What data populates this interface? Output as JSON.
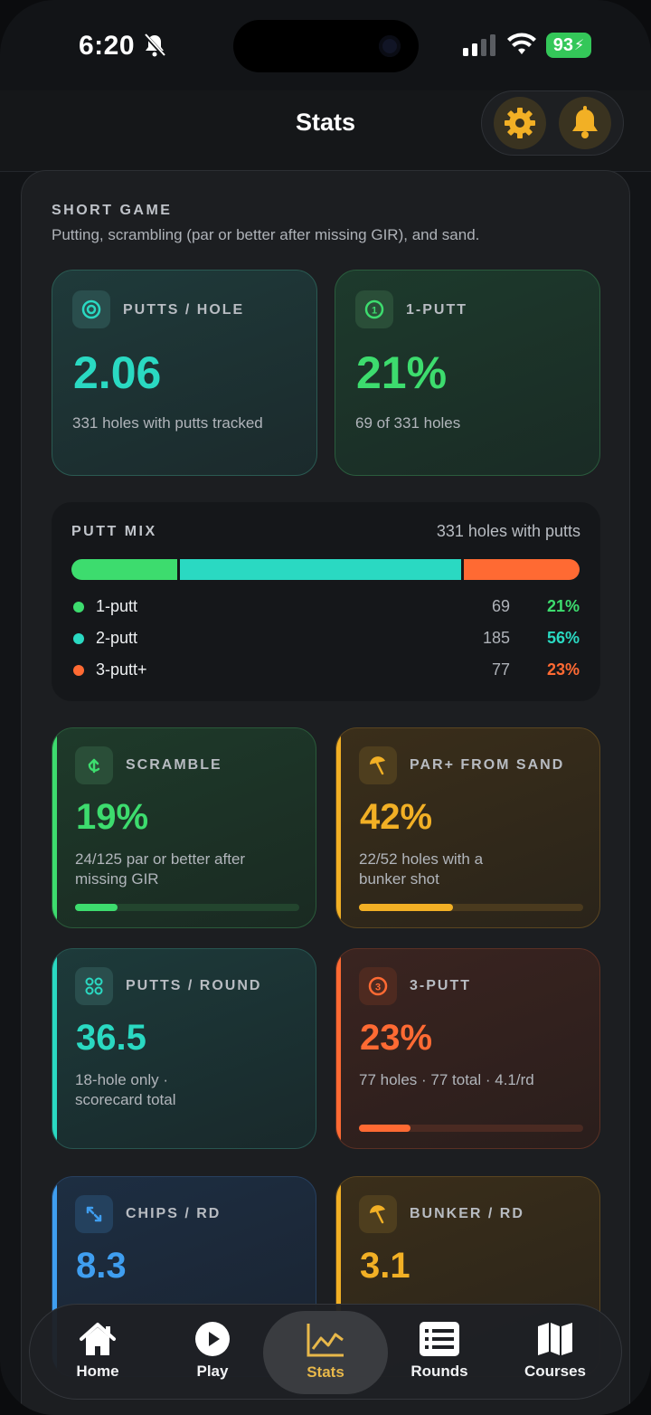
{
  "status_bar": {
    "time": "6:20",
    "battery": "93"
  },
  "header": {
    "title": "Stats"
  },
  "section": {
    "title": "SHORT GAME",
    "subtitle": "Putting, scrambling (par or better after missing GIR), and sand."
  },
  "cards": {
    "putts_per_hole": {
      "label": "PUTTS / HOLE",
      "value": "2.06",
      "note": "331 holes with putts tracked"
    },
    "one_putt": {
      "label": "1-PUTT",
      "value": "21%",
      "note": "69 of 331 holes"
    },
    "scramble": {
      "label": "SCRAMBLE",
      "value": "19%",
      "note_line1": "24/125 par or better after",
      "note_line2": "missing GIR",
      "progress": 0.19
    },
    "par_from_sand": {
      "label": "PAR+ FROM SAND",
      "value": "42%",
      "note_line1": "22/52 holes with a",
      "note_line2": "bunker shot",
      "progress": 0.42
    },
    "putts_per_round": {
      "label": "PUTTS / ROUND",
      "value": "36.5",
      "note_line1": "18-hole only ·",
      "note_line2": "scorecard total"
    },
    "three_putt": {
      "label": "3-PUTT",
      "value": "23%",
      "note": "77 holes · 77 total · 4.1/rd",
      "progress": 0.23
    },
    "chips_per_round": {
      "label": "CHIPS / RD",
      "value": "8.3"
    },
    "bunker_per_round": {
      "label": "BUNKER / RD",
      "value": "3.1"
    }
  },
  "putt_mix": {
    "title": "PUTT MIX",
    "count": "331 holes with putts",
    "rows": [
      {
        "name": "1-putt",
        "count": "69",
        "pct": "21%",
        "color": "#3ddc6e",
        "share": 0.21
      },
      {
        "name": "2-putt",
        "count": "185",
        "pct": "56%",
        "color": "#2ad9c2",
        "share": 0.56
      },
      {
        "name": "3-putt+",
        "count": "77",
        "pct": "23%",
        "color": "#ff6a33",
        "share": 0.23
      }
    ]
  },
  "colors": {
    "green": "#3ddc6e",
    "teal": "#2ad9c2",
    "orange": "#ff6a33",
    "amber": "#f2b025",
    "blue": "#3f9ef0",
    "gold": "#e8b84a"
  },
  "tabs": [
    {
      "label": "Home",
      "icon": "home-icon"
    },
    {
      "label": "Play",
      "icon": "play-icon"
    },
    {
      "label": "Stats",
      "icon": "chart-icon",
      "active": true
    },
    {
      "label": "Rounds",
      "icon": "list-icon"
    },
    {
      "label": "Courses",
      "icon": "map-icon"
    }
  ]
}
